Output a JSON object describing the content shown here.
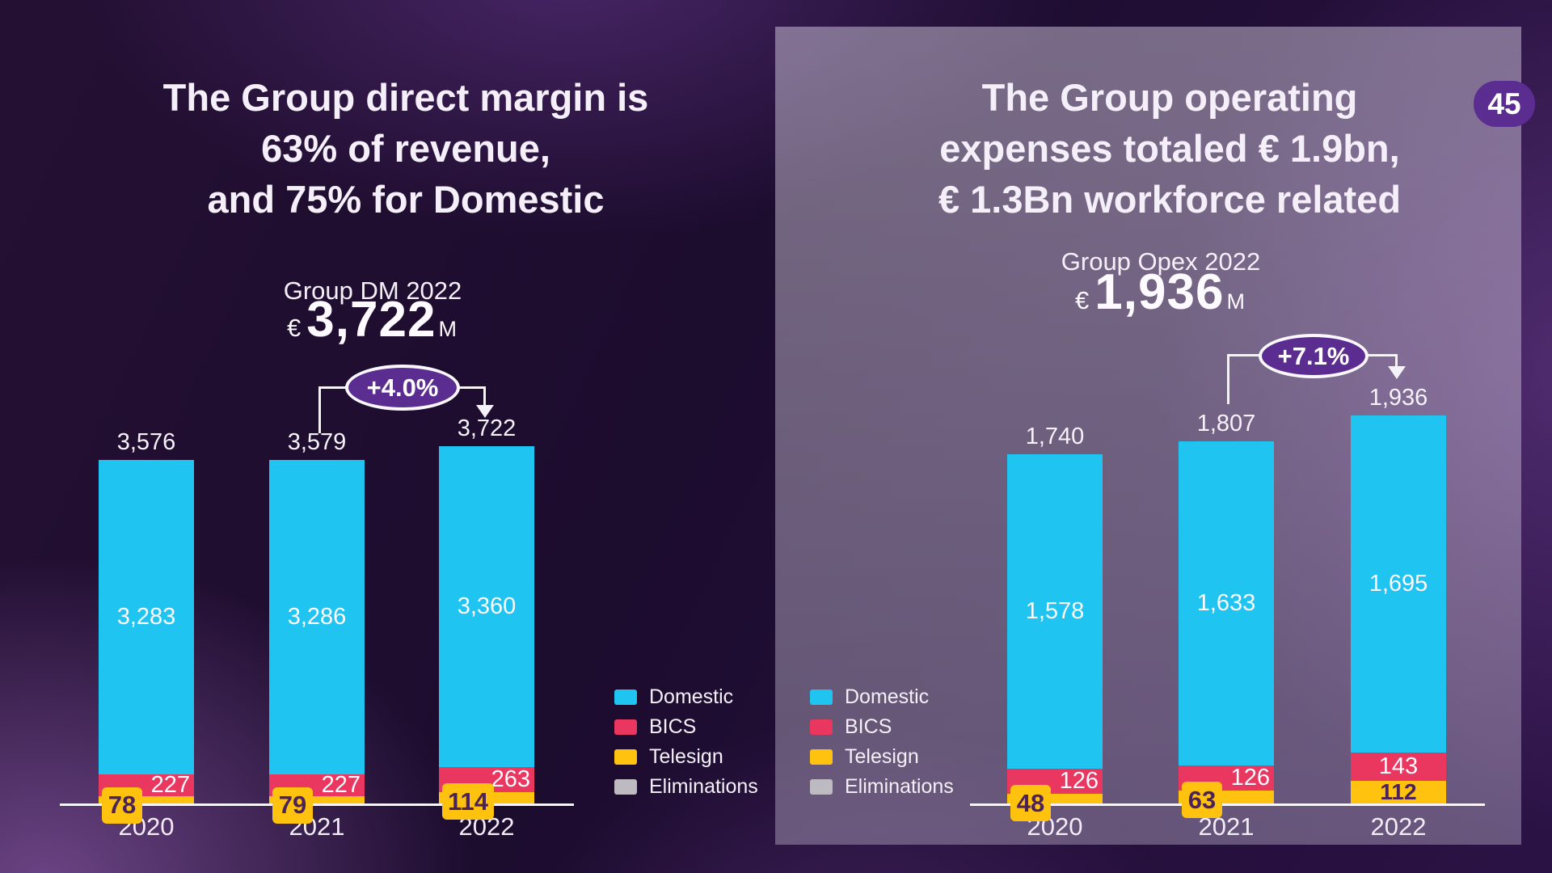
{
  "page": {
    "slide_number": "45"
  },
  "colors": {
    "domestic": "#1FC4F0",
    "bics": "#EA3760",
    "telesign": "#FFC20E",
    "eliminations": "#BDBBC1",
    "accent_purple": "#5C2D90"
  },
  "chart_data": [
    {
      "id": "group-dm",
      "type": "bar",
      "stacked": true,
      "title_lines": [
        "The Group direct margin is",
        "63% of revenue,",
        "and 75% for Domestic"
      ],
      "metric": {
        "label": "Group DM 2022",
        "currency": "€",
        "value": "3,722",
        "unit": "M"
      },
      "growth": {
        "label": "+4.0%",
        "from_year": "2021",
        "to_year": "2022"
      },
      "categories": [
        "2020",
        "2021",
        "2022"
      ],
      "series": [
        {
          "name": "Domestic",
          "values": [
            3283,
            3286,
            3360
          ],
          "labels": [
            "3,283",
            "3,286",
            "3,360"
          ]
        },
        {
          "name": "BICS",
          "values": [
            227,
            227,
            263
          ],
          "labels": [
            "227",
            "227",
            "263"
          ],
          "label_aligns": [
            "right",
            "right",
            "right"
          ]
        },
        {
          "name": "Telesign",
          "values": [
            78,
            79,
            114
          ],
          "labels": [
            "78",
            "79",
            "114"
          ],
          "label_styles": [
            "tag",
            "tag",
            "tag"
          ]
        }
      ],
      "totals": {
        "values": [
          3576,
          3579,
          3722
        ],
        "labels": [
          "3,576",
          "3,579",
          "3,722"
        ]
      },
      "legend": [
        "Domestic",
        "BICS",
        "Telesign",
        "Eliminations"
      ],
      "ylim": [
        0,
        3800
      ],
      "grid": false
    },
    {
      "id": "group-opex",
      "type": "bar",
      "stacked": true,
      "title_lines": [
        "The Group  operating",
        "expenses totaled € 1.9bn,",
        "€ 1.3Bn workforce related"
      ],
      "metric": {
        "label": "Group Opex 2022",
        "currency": "€",
        "value": "1,936",
        "unit": "M"
      },
      "growth": {
        "label": "+7.1%",
        "from_year": "2021",
        "to_year": "2022"
      },
      "categories": [
        "2020",
        "2021",
        "2022"
      ],
      "series": [
        {
          "name": "Domestic",
          "values": [
            1578,
            1633,
            1695
          ],
          "labels": [
            "1,578",
            "1,633",
            "1,695"
          ]
        },
        {
          "name": "BICS",
          "values": [
            126,
            126,
            143
          ],
          "labels": [
            "126",
            "126",
            "143"
          ],
          "label_aligns": [
            "right",
            "right",
            "center"
          ]
        },
        {
          "name": "Telesign",
          "values": [
            48,
            63,
            112
          ],
          "labels": [
            "48",
            "63",
            "112"
          ],
          "label_styles": [
            "tag",
            "tag",
            "inline"
          ]
        }
      ],
      "totals": {
        "values": [
          1740,
          1807,
          1936
        ],
        "labels": [
          "1,740",
          "1,807",
          "1,936"
        ]
      },
      "legend": [
        "Domestic",
        "BICS",
        "Telesign",
        "Eliminations"
      ],
      "ylim": [
        0,
        2000
      ],
      "grid": false
    }
  ]
}
